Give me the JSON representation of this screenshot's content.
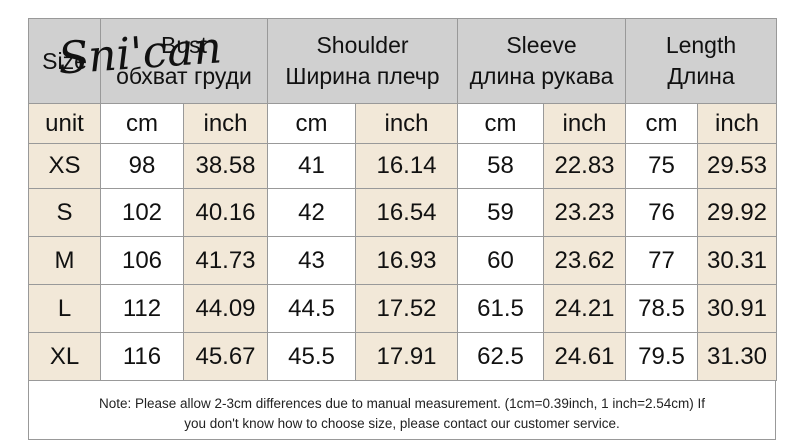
{
  "watermark": "Sni'can",
  "table": {
    "header": [
      {
        "en": "Size"
      },
      {
        "en": "Bust",
        "ru": "обхват груди"
      },
      {
        "en": "Shoulder",
        "ru": "Ширина плечр"
      },
      {
        "en": "Sleeve",
        "ru": "длина рукава"
      },
      {
        "en": "Length",
        "ru": "Длина"
      }
    ],
    "units": [
      "unit",
      "cm",
      "inch",
      "cm",
      "inch",
      "cm",
      "inch",
      "cm",
      "inch"
    ],
    "rows": [
      [
        "XS",
        "98",
        "38.58",
        "41",
        "16.14",
        "58",
        "22.83",
        "75",
        "29.53"
      ],
      [
        "S",
        "102",
        "40.16",
        "42",
        "16.54",
        "59",
        "23.23",
        "76",
        "29.92"
      ],
      [
        "M",
        "106",
        "41.73",
        "43",
        "16.93",
        "60",
        "23.62",
        "77",
        "30.31"
      ],
      [
        "L",
        "112",
        "44.09",
        "44.5",
        "17.52",
        "61.5",
        "24.21",
        "78.5",
        "30.91"
      ],
      [
        "XL",
        "116",
        "45.67",
        "45.5",
        "17.91",
        "62.5",
        "24.61",
        "79.5",
        "31.30"
      ]
    ]
  },
  "note": {
    "line1": "Note: Please allow 2-3cm differences due to manual measurement. (1cm=0.39inch, 1 inch=2.54cm)  If",
    "line2": "you don't know how to choose size, please contact our customer service."
  }
}
